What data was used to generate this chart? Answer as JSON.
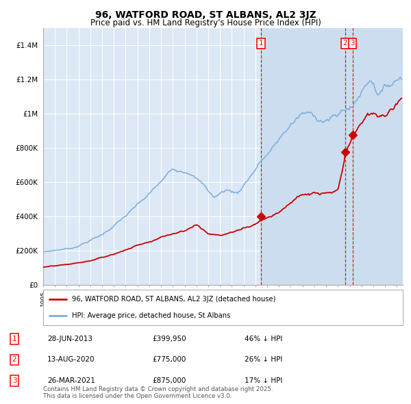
{
  "title": "96, WATFORD ROAD, ST ALBANS, AL2 3JZ",
  "subtitle": "Price paid vs. HM Land Registry's House Price Index (HPI)",
  "title_fontsize": 10,
  "subtitle_fontsize": 8.5,
  "background_color": "#ffffff",
  "plot_bg_color": "#dce8f5",
  "grid_color": "#ffffff",
  "red_line_color": "#cc0000",
  "blue_line_color": "#7aacdc",
  "shade_color": "#ccddf0",
  "ylim": [
    0,
    1500000
  ],
  "yticks": [
    0,
    200000,
    400000,
    600000,
    800000,
    1000000,
    1200000,
    1400000
  ],
  "ytick_labels": [
    "£0",
    "£200K",
    "£400K",
    "£600K",
    "£800K",
    "£1M",
    "£1.2M",
    "£1.4M"
  ],
  "sale1_date": "28-JUN-2013",
  "sale1_year": 2013.49,
  "sale1_price": 399950,
  "sale1_label": "46% ↓ HPI",
  "sale2_date": "13-AUG-2020",
  "sale2_year": 2020.62,
  "sale2_price": 775000,
  "sale2_label": "26% ↓ HPI",
  "sale3_date": "26-MAR-2021",
  "sale3_year": 2021.23,
  "sale3_price": 875000,
  "sale3_label": "17% ↓ HPI",
  "legend_label_red": "96, WATFORD ROAD, ST ALBANS, AL2 3JZ (detached house)",
  "legend_label_blue": "HPI: Average price, detached house, St Albans",
  "footnote": "Contains HM Land Registry data © Crown copyright and database right 2025.\nThis data is licensed under the Open Government Licence v3.0.",
  "xstart": 1995,
  "xend": 2025.5
}
